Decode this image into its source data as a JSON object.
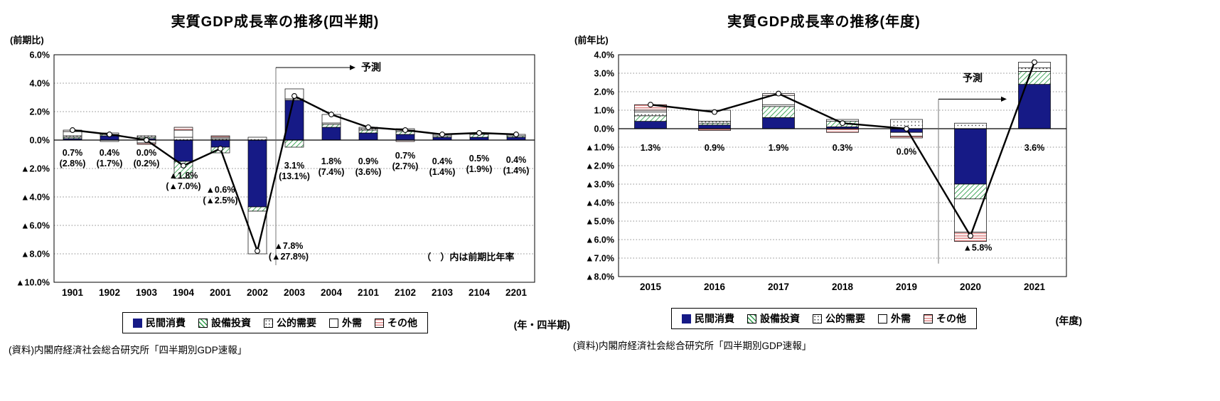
{
  "page": {
    "background": "#ffffff"
  },
  "colors": {
    "consumption_fill": "#161a86",
    "capex_hatch": "#2e9e4b",
    "public_dot": "#333333",
    "external_fill": "#ffffff",
    "other_stripe": "#e08a8a",
    "line": "#000000",
    "grid": "#8c8c8c",
    "axis": "#000000"
  },
  "chart_data": [
    {
      "type": "bar",
      "stacked": true,
      "overlay": "line",
      "title": "実質GDP成長率の推移(四半期)",
      "y_axis_unit": "(前期比)",
      "x_axis_unit": "(年・四半期)",
      "note": "（　）内は前期比年率",
      "note_pos": {
        "x_slot": 11.2,
        "y": -8.45
      },
      "source": "(資料)内閣府経済社会総合研究所「四半期別GDP速報」",
      "categories": [
        "1901",
        "1902",
        "1903",
        "1904",
        "2001",
        "2002",
        "2003",
        "2004",
        "2101",
        "2102",
        "2103",
        "2104",
        "2201"
      ],
      "series": [
        {
          "name": "民間消費",
          "values": [
            0.1,
            0.3,
            0.1,
            -1.5,
            -0.5,
            -4.7,
            2.8,
            0.9,
            0.5,
            0.4,
            0.2,
            0.2,
            0.2
          ]
        },
        {
          "name": "設備投資",
          "values": [
            0.1,
            0.1,
            0.1,
            -1.2,
            -0.4,
            -0.3,
            -0.5,
            0.2,
            0.2,
            0.2,
            0.1,
            0.2,
            0.1
          ]
        },
        {
          "name": "公的需要",
          "values": [
            0.1,
            0.1,
            0.1,
            0.2,
            0.1,
            0.2,
            0.1,
            0.1,
            0.1,
            0.1,
            0.1,
            0.1,
            0.1
          ]
        },
        {
          "name": "外需",
          "values": [
            0.3,
            -0.1,
            -0.2,
            0.5,
            0.1,
            -3.0,
            0.7,
            0.6,
            0.1,
            0.1,
            0.0,
            0.0,
            0.0
          ]
        },
        {
          "name": "その他",
          "values": [
            0.1,
            0.0,
            -0.1,
            0.2,
            0.1,
            0.0,
            0.0,
            0.0,
            0.0,
            -0.1,
            0.0,
            0.0,
            0.0
          ]
        }
      ],
      "line": {
        "name": "実質GDP成長率(前期比)",
        "values": [
          0.7,
          0.4,
          0.0,
          -1.8,
          -0.6,
          -7.8,
          3.1,
          1.8,
          0.9,
          0.7,
          0.4,
          0.5,
          0.4
        ]
      },
      "point_labels": [
        "0.7%",
        "0.4%",
        "0.0%",
        "▲1.8%",
        "▲0.6%",
        "▲7.8%",
        "3.1%",
        "1.8%",
        "0.9%",
        "0.7%",
        "0.4%",
        "0.5%",
        "0.4%"
      ],
      "point_sublabels": [
        "(2.8%)",
        "(1.7%)",
        "(0.2%)",
        "(▲7.0%)",
        "(▲2.5%)",
        "(▲27.8%)",
        "(13.1%)",
        "(7.4%)",
        "(3.6%)",
        "(2.7%)",
        "(1.4%)",
        "(1.9%)",
        "(1.4%)"
      ],
      "label_y": [
        -1.1,
        -1.1,
        -1.1,
        -2.7,
        -3.7,
        -7.65,
        -2.0,
        -1.7,
        -1.7,
        -1.3,
        -1.7,
        -1.5,
        -1.6
      ],
      "label_dx": [
        0,
        0,
        0,
        0,
        0,
        44,
        0,
        0,
        0,
        0,
        0,
        0,
        0
      ],
      "ylim": [
        -10,
        6
      ],
      "ytick_step": 2,
      "bar_width_ratio": 0.5,
      "grid": "dotted-horizontal",
      "legend_position": "bottom",
      "forecast": {
        "label": "予測",
        "boundary_index": 6,
        "line_top": 5.1,
        "line_bottom": -8.8,
        "arrow_y": 5.1,
        "arrow_len": 112,
        "label_mode": "right"
      }
    },
    {
      "type": "bar",
      "stacked": true,
      "overlay": "line",
      "title": "実質GDP成長率の推移(年度)",
      "y_axis_unit": "(前年比)",
      "x_axis_unit": "(年度)",
      "source": "(資料)内閣府経済社会総合研究所「四半期別GDP速報」",
      "categories": [
        "2015",
        "2016",
        "2017",
        "2018",
        "2019",
        "2020",
        "2021"
      ],
      "series": [
        {
          "name": "民間消費",
          "values": [
            0.4,
            0.2,
            0.6,
            0.1,
            -0.2,
            -3.0,
            2.4
          ]
        },
        {
          "name": "設備投資",
          "values": [
            0.3,
            0.1,
            0.6,
            0.3,
            0.0,
            -0.8,
            0.7
          ]
        },
        {
          "name": "公的需要",
          "values": [
            0.2,
            0.1,
            0.1,
            0.1,
            0.5,
            0.3,
            0.2
          ]
        },
        {
          "name": "外需",
          "values": [
            0.1,
            0.6,
            0.5,
            0.0,
            -0.2,
            -1.8,
            0.3
          ]
        },
        {
          "name": "その他",
          "values": [
            0.3,
            -0.1,
            0.1,
            -0.2,
            -0.1,
            -0.5,
            0.0
          ]
        }
      ],
      "line": {
        "name": "実質GDP成長率(前年比)",
        "values": [
          1.3,
          0.9,
          1.9,
          0.3,
          0.0,
          -5.8,
          3.6
        ]
      },
      "point_labels": [
        "1.3%",
        "0.9%",
        "1.9%",
        "0.3%",
        "0.0%",
        "▲5.8%",
        "3.6%"
      ],
      "label_y": [
        -1.2,
        -1.2,
        -1.2,
        -1.2,
        -1.4,
        -6.6,
        -1.2
      ],
      "label_dx": [
        0,
        0,
        0,
        0,
        0,
        10,
        0
      ],
      "ylim": [
        -8,
        4
      ],
      "ytick_step": 1,
      "bar_width_ratio": 0.5,
      "grid": "dotted-horizontal",
      "legend_position": "bottom",
      "forecast": {
        "label": "予測",
        "boundary_index": 5,
        "line_top": 1.6,
        "line_bottom": -7.3,
        "arrow_y": 1.6,
        "arrow_len": 96,
        "label_mode": "above",
        "label_y": 2.55
      }
    }
  ]
}
